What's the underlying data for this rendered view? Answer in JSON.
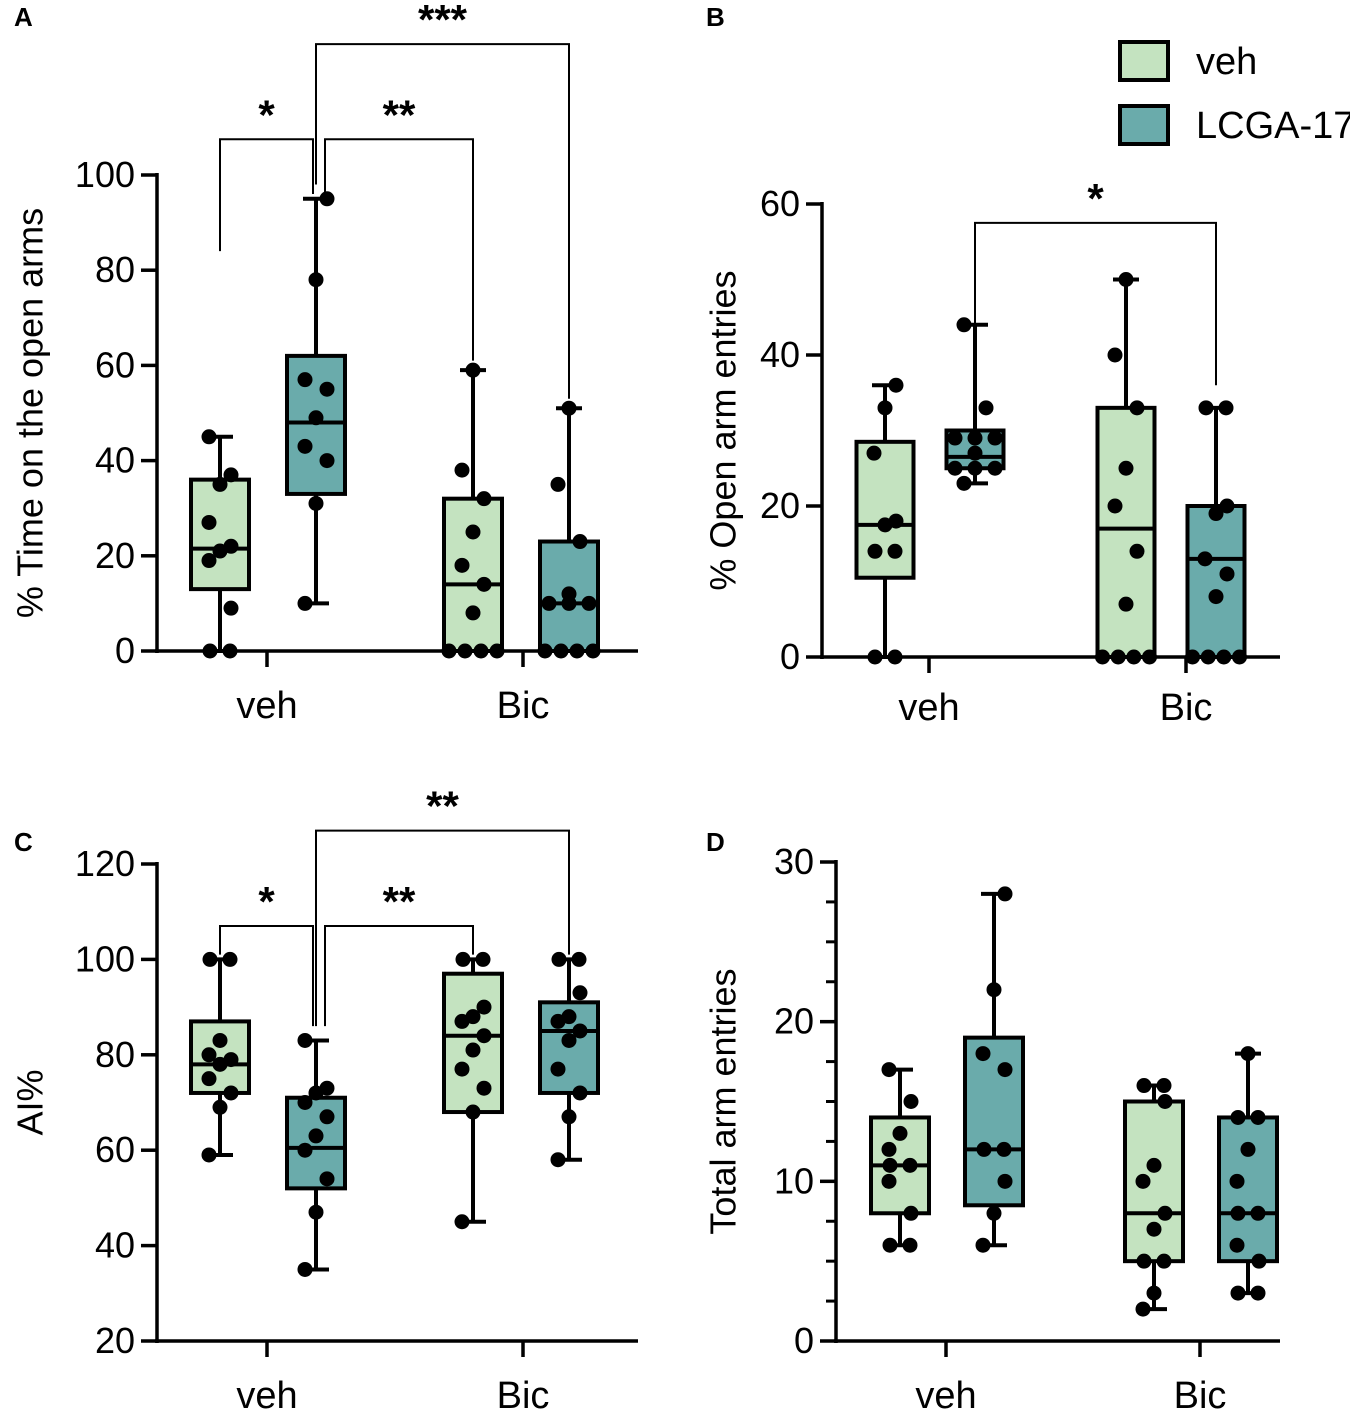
{
  "legend": {
    "items": [
      {
        "label": "veh",
        "color": "#c4e3c0"
      },
      {
        "label": "LCGA-17",
        "color": "#6aabab"
      }
    ]
  },
  "chart_data": [
    {
      "panel": "A",
      "type": "box",
      "ylabel": "% Time on the open arms",
      "ylim": [
        0,
        100
      ],
      "yticks": [
        0,
        20,
        40,
        60,
        80,
        100
      ],
      "ytick_labels": [
        "0",
        "20",
        "40",
        "60",
        "80",
        "100"
      ],
      "minor_ticks": false,
      "categories": [
        "veh",
        "Bic"
      ],
      "series": [
        {
          "name": "veh",
          "boxes": [
            {
              "category": "veh",
              "min": 0,
              "q1": 13,
              "median": 21.5,
              "q3": 36,
              "max": 45,
              "points": [
                0,
                0,
                9,
                19,
                21,
                22,
                27,
                35,
                37,
                45
              ]
            },
            {
              "category": "Bic",
              "min": 0,
              "q1": 0,
              "median": 14,
              "q3": 32,
              "max": 59,
              "points": [
                0,
                0,
                0,
                0,
                8,
                14,
                18,
                25,
                32,
                38,
                59
              ]
            }
          ]
        },
        {
          "name": "LCGA-17",
          "boxes": [
            {
              "category": "veh",
              "min": 10,
              "q1": 33,
              "median": 48,
              "q3": 62,
              "max": 95,
              "points": [
                10,
                31,
                40,
                43,
                49,
                55,
                57,
                78,
                95
              ]
            },
            {
              "category": "Bic",
              "min": 0,
              "q1": 0,
              "median": 10,
              "q3": 23,
              "max": 51,
              "points": [
                0,
                0,
                0,
                0,
                10,
                10,
                10,
                12,
                23,
                35,
                51
              ]
            }
          ]
        }
      ],
      "brackets": [
        {
          "from": "veh:veh",
          "to": "veh:LCGA-17",
          "label": "*",
          "y": 107.5,
          "tips": [
            84,
            96
          ]
        },
        {
          "from": "veh:LCGA-17",
          "to": "Bic:veh",
          "label": "**",
          "y": 107.5,
          "tips": [
            96,
            61
          ]
        },
        {
          "from": "veh:LCGA-17",
          "to": "Bic:LCGA-17",
          "label": "***",
          "y": 127.5,
          "tips": [
            98,
            53
          ]
        }
      ]
    },
    {
      "panel": "B",
      "type": "box",
      "ylabel": "% Open arm entries",
      "ylim": [
        0,
        60
      ],
      "yticks": [
        0,
        20,
        40,
        60
      ],
      "ytick_labels": [
        "0",
        "20",
        "40",
        "60"
      ],
      "minor_ticks": false,
      "categories": [
        "veh",
        "Bic"
      ],
      "series": [
        {
          "name": "veh",
          "boxes": [
            {
              "category": "veh",
              "min": 0,
              "q1": 10.5,
              "median": 17.5,
              "q3": 28.5,
              "max": 36,
              "points": [
                0,
                0,
                14,
                14,
                17.5,
                18,
                27,
                33,
                36
              ]
            },
            {
              "category": "Bic",
              "min": 0,
              "q1": 0,
              "median": 17,
              "q3": 33,
              "max": 50,
              "points": [
                0,
                0,
                0,
                0,
                7,
                14,
                20,
                25,
                33,
                40,
                50
              ]
            }
          ]
        },
        {
          "name": "LCGA-17",
          "boxes": [
            {
              "category": "veh",
              "min": 23,
              "q1": 25,
              "median": 26.5,
              "q3": 30,
              "max": 44,
              "points": [
                23,
                25,
                25,
                25,
                27,
                29,
                29,
                29,
                33,
                44
              ]
            },
            {
              "category": "Bic",
              "min": 0,
              "q1": 0,
              "median": 13,
              "q3": 20,
              "max": 33,
              "points": [
                0,
                0,
                0,
                0,
                8,
                11,
                13,
                19,
                20,
                33,
                33
              ]
            }
          ]
        }
      ],
      "brackets": [
        {
          "from": "veh:LCGA-17",
          "to": "Bic:LCGA-17",
          "label": "*",
          "y": 57.5,
          "tips": [
            44,
            36
          ]
        }
      ]
    },
    {
      "panel": "C",
      "type": "box",
      "ylabel": "AI%",
      "ylim": [
        20,
        120
      ],
      "yticks": [
        20,
        40,
        60,
        80,
        100,
        120
      ],
      "ytick_labels": [
        "20",
        "40",
        "60",
        "80",
        "100",
        "120"
      ],
      "minor_ticks": false,
      "categories": [
        "veh",
        "Bic"
      ],
      "series": [
        {
          "name": "veh",
          "boxes": [
            {
              "category": "veh",
              "min": 59,
              "q1": 72,
              "median": 78,
              "q3": 87,
              "max": 100,
              "points": [
                59,
                69,
                72,
                75,
                78,
                79,
                80,
                83,
                100,
                100
              ]
            },
            {
              "category": "Bic",
              "min": 45,
              "q1": 68,
              "median": 84,
              "q3": 97,
              "max": 100,
              "points": [
                45,
                68,
                73,
                77,
                81,
                84,
                87,
                88,
                90,
                100,
                100
              ]
            }
          ]
        },
        {
          "name": "LCGA-17",
          "boxes": [
            {
              "category": "veh",
              "min": 35,
              "q1": 52,
              "median": 60.5,
              "q3": 71,
              "max": 83,
              "points": [
                35,
                47,
                54,
                60,
                63,
                67,
                70,
                72,
                73,
                83
              ]
            },
            {
              "category": "Bic",
              "min": 58,
              "q1": 72,
              "median": 85,
              "q3": 91,
              "max": 100,
              "points": [
                58,
                67,
                72,
                77,
                83,
                85,
                87,
                88,
                93,
                100,
                100
              ]
            }
          ]
        }
      ],
      "brackets": [
        {
          "from": "veh:veh",
          "to": "veh:LCGA-17",
          "label": "*",
          "y": 107,
          "tips": [
            101,
            86
          ]
        },
        {
          "from": "veh:LCGA-17",
          "to": "Bic:veh",
          "label": "**",
          "y": 107,
          "tips": [
            86,
            101
          ]
        },
        {
          "from": "veh:LCGA-17",
          "to": "Bic:LCGA-17",
          "label": "**",
          "y": 127,
          "tips": [
            86,
            101
          ]
        }
      ]
    },
    {
      "panel": "D",
      "type": "box",
      "ylabel": "Total arm entries",
      "ylim": [
        0,
        30
      ],
      "yticks": [
        0,
        10,
        20,
        30
      ],
      "ytick_labels": [
        "0",
        "10",
        "20",
        "30"
      ],
      "minor_ticks": true,
      "minor_step": 2.5,
      "categories": [
        "veh",
        "Bic"
      ],
      "series": [
        {
          "name": "veh",
          "boxes": [
            {
              "category": "veh",
              "min": 6,
              "q1": 8,
              "median": 11,
              "q3": 14,
              "max": 17,
              "points": [
                6,
                6,
                8,
                10,
                11,
                11,
                12,
                13,
                15,
                17
              ]
            },
            {
              "category": "Bic",
              "min": 2,
              "q1": 5,
              "median": 8,
              "q3": 15,
              "max": 16,
              "points": [
                2,
                3,
                5,
                5,
                7,
                8,
                10,
                11,
                15,
                16,
                16
              ]
            }
          ]
        },
        {
          "name": "LCGA-17",
          "boxes": [
            {
              "category": "veh",
              "min": 6,
              "q1": 8.5,
              "median": 12,
              "q3": 19,
              "max": 28,
              "points": [
                6,
                8,
                10,
                12,
                12,
                17,
                18,
                22,
                28
              ]
            },
            {
              "category": "Bic",
              "min": 3,
              "q1": 5,
              "median": 8,
              "q3": 14,
              "max": 18,
              "points": [
                3,
                3,
                5,
                6,
                8,
                8,
                10,
                12,
                14,
                14,
                18
              ]
            }
          ]
        }
      ],
      "brackets": []
    }
  ]
}
